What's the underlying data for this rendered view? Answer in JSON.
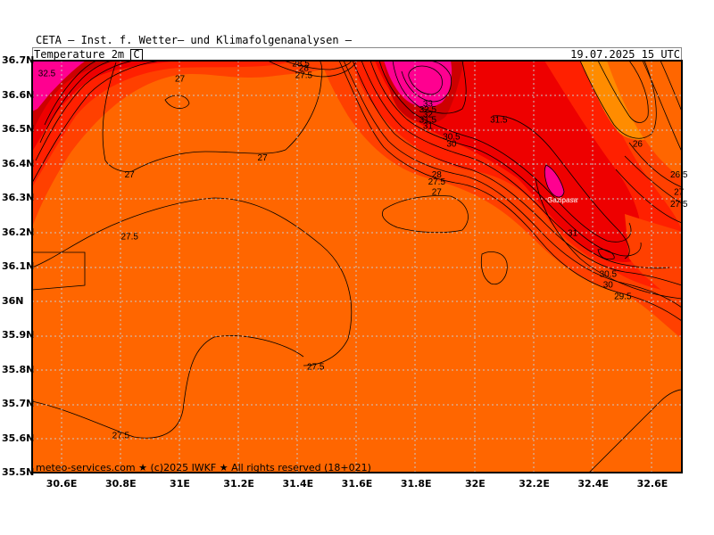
{
  "header": {
    "organization": "CETA — Inst. f. Wetter— und Klimafolgenanalysen —",
    "variable": "Temperature 2m",
    "unit": "C",
    "datetime": "19.07.2025 15 UTC"
  },
  "footer": "meteo-services.com ★ (c)2025 IWKF ★ All rights reserved (18+021)",
  "lat_labels": [
    "36.7N",
    "36.6N",
    "36.5N",
    "36.4N",
    "36.3N",
    "36.2N",
    "36.1N",
    "36N",
    "35.9N",
    "35.8N",
    "35.7N",
    "35.6N",
    "35.5N"
  ],
  "lon_labels": [
    "30.6E",
    "30.8E",
    "31E",
    "31.2E",
    "31.4E",
    "31.6E",
    "31.8E",
    "32E",
    "32.2E",
    "32.4E",
    "32.6E"
  ],
  "place_label": "Gazipasa",
  "contour_labels": [
    {
      "text": "32.5",
      "lon": 30.55,
      "lat": 36.665
    },
    {
      "text": "27",
      "lon": 31.0,
      "lat": 36.65
    },
    {
      "text": "28.5",
      "lon": 31.41,
      "lat": 36.693
    },
    {
      "text": "28",
      "lon": 31.42,
      "lat": 36.68
    },
    {
      "text": "27.5",
      "lon": 31.42,
      "lat": 36.66
    },
    {
      "text": "33",
      "lon": 31.84,
      "lat": 36.577
    },
    {
      "text": "32.5",
      "lon": 31.84,
      "lat": 36.56
    },
    {
      "text": "32",
      "lon": 31.84,
      "lat": 36.545
    },
    {
      "text": "31.5",
      "lon": 31.84,
      "lat": 36.53
    },
    {
      "text": "31",
      "lon": 31.84,
      "lat": 36.512
    },
    {
      "text": "31.5",
      "lon": 32.08,
      "lat": 36.53
    },
    {
      "text": "30.5",
      "lon": 31.92,
      "lat": 36.48
    },
    {
      "text": "30",
      "lon": 31.92,
      "lat": 36.46
    },
    {
      "text": "26",
      "lon": 32.55,
      "lat": 36.46
    },
    {
      "text": "27",
      "lon": 31.28,
      "lat": 36.42
    },
    {
      "text": "27",
      "lon": 30.83,
      "lat": 36.37
    },
    {
      "text": "28",
      "lon": 31.87,
      "lat": 36.37
    },
    {
      "text": "27.5",
      "lon": 31.87,
      "lat": 36.35
    },
    {
      "text": "27",
      "lon": 31.87,
      "lat": 36.32
    },
    {
      "text": "26.5",
      "lon": 32.69,
      "lat": 36.37
    },
    {
      "text": "27",
      "lon": 32.69,
      "lat": 36.32
    },
    {
      "text": "27.5",
      "lon": 32.69,
      "lat": 36.285
    },
    {
      "text": "31",
      "lon": 32.33,
      "lat": 36.2
    },
    {
      "text": "27.5",
      "lon": 30.83,
      "lat": 36.19
    },
    {
      "text": "30.5",
      "lon": 32.45,
      "lat": 36.08
    },
    {
      "text": "30",
      "lon": 32.45,
      "lat": 36.05
    },
    {
      "text": "29.5",
      "lon": 32.5,
      "lat": 36.015
    },
    {
      "text": "27.5",
      "lon": 31.46,
      "lat": 35.81
    },
    {
      "text": "27.5",
      "lon": 30.8,
      "lat": 35.61
    }
  ],
  "legend_colors": {
    "t27": "#ff6600",
    "t28": "#ff4000",
    "t30": "#ff2000",
    "t31": "#ee0000",
    "t32": "#cc0000",
    "t33": "#ff0090",
    "t26": "#ff8c00"
  }
}
